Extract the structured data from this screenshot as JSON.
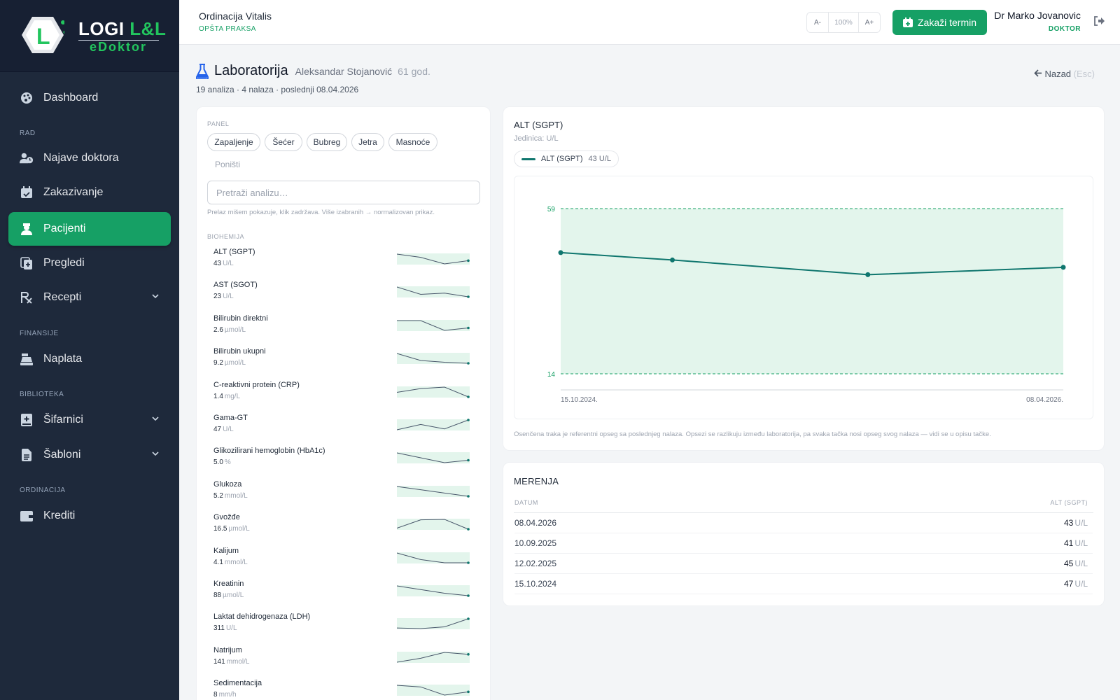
{
  "brand": {
    "logo_letter": "L",
    "top_text_a": "LOGI",
    "top_text_b": "L&L",
    "bottom_text": "eDoktor"
  },
  "sidebar": {
    "items": [
      {
        "label": "Dashboard",
        "icon": "palette-icon"
      },
      {
        "section": "RAD"
      },
      {
        "label": "Najave doktora",
        "icon": "user-clock-icon"
      },
      {
        "label": "Zakazivanje",
        "icon": "calendar-check-icon"
      },
      {
        "label": "Pacijenti",
        "icon": "user-nurse-icon",
        "active": true
      },
      {
        "label": "Pregledi",
        "icon": "file-medical-icon"
      },
      {
        "label": "Recepti",
        "icon": "prescription-icon",
        "expandable": true
      },
      {
        "section": "FINANSIJE"
      },
      {
        "label": "Naplata",
        "icon": "cash-register-icon"
      },
      {
        "section": "BIBLIOTEKA"
      },
      {
        "label": "Šifarnici",
        "icon": "book-medical-icon",
        "expandable": true
      },
      {
        "label": "Šabloni",
        "icon": "file-lines-icon",
        "expandable": true
      },
      {
        "section": "ORDINACIJA"
      },
      {
        "label": "Krediti",
        "icon": "wallet-icon"
      }
    ],
    "sections": {
      "rad": "RAD",
      "finansije": "FINANSIJE",
      "biblioteka": "BIBLIOTEKA",
      "ordinacija": "ORDINACIJA"
    },
    "labels": {
      "dashboard": "Dashboard",
      "najave": "Najave doktora",
      "zakazivanje": "Zakazivanje",
      "pacijenti": "Pacijenti",
      "pregledi": "Pregledi",
      "recepti": "Recepti",
      "naplata": "Naplata",
      "sifarnici": "Šifarnici",
      "sabloni": "Šabloni",
      "krediti": "Krediti"
    }
  },
  "header": {
    "clinic": "Ordinacija Vitalis",
    "clinic_type": "OPŠTA PRAKSA",
    "zoom": {
      "minus": "A-",
      "level": "100%",
      "plus": "A+"
    },
    "cta": "Zakaži termin",
    "user_name": "Dr Marko Jovanovic",
    "user_role": "DOKTOR"
  },
  "page": {
    "title": "Laboratorija",
    "patient": "Aleksandar Stojanović",
    "age": "61 god.",
    "summary": "19 analiza · 4 nalaza · poslednji 08.04.2026",
    "back": "Nazad",
    "back_hint": "(Esc)"
  },
  "filters": {
    "panel_label": "PANEL",
    "chips": [
      "Zapaljenje",
      "Šećer",
      "Bubreg",
      "Jetra",
      "Masnoće"
    ],
    "reset": "Poništi",
    "search_placeholder": "Pretraži analizu…",
    "hint": "Prelaz mišem pokazuje, klik zadržava. Više izabranih → normalizovan prikaz."
  },
  "analyses": {
    "group": "BIOHEMIJA",
    "items": [
      {
        "name": "ALT (SGPT)",
        "value": "43",
        "unit": "U/L",
        "trend": [
          47,
          45,
          41,
          43
        ]
      },
      {
        "name": "AST (SGOT)",
        "value": "23",
        "unit": "U/L",
        "trend": [
          27,
          24,
          24.5,
          23
        ]
      },
      {
        "name": "Bilirubin direktni",
        "value": "2.6",
        "unit": "µmol/L",
        "trend": [
          2.9,
          2.9,
          2.5,
          2.6
        ]
      },
      {
        "name": "Bilirubin ukupni",
        "value": "9.2",
        "unit": "µmol/L",
        "trend": [
          12,
          10,
          9.5,
          9.2
        ]
      },
      {
        "name": "C-reaktivni protein (CRP)",
        "value": "1.4",
        "unit": "mg/L",
        "trend": [
          2.0,
          2.5,
          2.7,
          1.4
        ]
      },
      {
        "name": "Gama-GT",
        "value": "47",
        "unit": "U/L",
        "trend": [
          36,
          42,
          37,
          47
        ]
      },
      {
        "name": "Glikozilirani hemoglobin (HbA1c)",
        "value": "5.0",
        "unit": "%",
        "trend": [
          5.3,
          5.1,
          4.9,
          5.0
        ]
      },
      {
        "name": "Glukoza",
        "value": "5.2",
        "unit": "mmol/L",
        "trend": [
          5.5,
          5.4,
          5.3,
          5.2
        ]
      },
      {
        "name": "Gvožđe",
        "value": "16.5",
        "unit": "µmol/L",
        "trend": [
          17,
          21,
          21.2,
          16.5
        ]
      },
      {
        "name": "Kalijum",
        "value": "4.1",
        "unit": "mmol/L",
        "trend": [
          4.4,
          4.2,
          4.1,
          4.1
        ]
      },
      {
        "name": "Kreatinin",
        "value": "88",
        "unit": "µmol/L",
        "trend": [
          104,
          98,
          92,
          88
        ]
      },
      {
        "name": "Laktat dehidrogenaza (LDH)",
        "value": "311",
        "unit": "U/L",
        "trend": [
          230,
          225,
          240,
          311
        ]
      },
      {
        "name": "Natrijum",
        "value": "141",
        "unit": "mmol/L",
        "trend": [
          139,
          140,
          141.5,
          141
        ]
      },
      {
        "name": "Sedimentacija",
        "value": "8",
        "unit": "mm/h",
        "trend": [
          12,
          11,
          6,
          8
        ]
      }
    ]
  },
  "chart_data": {
    "type": "line",
    "title": "ALT (SGPT)",
    "subtitle": "Jedinica: U/L",
    "legend_entry": "ALT (SGPT)",
    "legend_value": "43",
    "legend_unit": "U/L",
    "x": [
      "15.10.2024.",
      "12.02.2025.",
      "10.09.2025.",
      "08.04.2026."
    ],
    "x_days": [
      0,
      120,
      330,
      540
    ],
    "values": [
      47,
      45,
      41,
      43
    ],
    "reference_range": [
      14,
      59
    ],
    "ylim": [
      10,
      62
    ],
    "y_ticks": [
      "59",
      "14"
    ],
    "x_ticks": [
      "15.10.2024.",
      "08.04.2026."
    ],
    "note": "Osenčena traka je referentni opseg sa poslednjeg nalaza. Opsezi se razlikuju između laboratorija, pa svaka tačka nosi opseg svog nalaza — vidi se u opisu tačke."
  },
  "measurements": {
    "title": "MERENJA",
    "col_date": "DATUM",
    "col_value": "ALT (SGPT)",
    "rows": [
      {
        "date": "08.04.2026",
        "value": "43",
        "unit": "U/L"
      },
      {
        "date": "10.09.2025",
        "value": "41",
        "unit": "U/L"
      },
      {
        "date": "12.02.2025",
        "value": "45",
        "unit": "U/L"
      },
      {
        "date": "15.10.2024",
        "value": "47",
        "unit": "U/L"
      }
    ]
  },
  "colors": {
    "accent": "#16a065",
    "sidebar": "#1e293b",
    "line": "#0f766e",
    "band": "#e3f5ec"
  }
}
